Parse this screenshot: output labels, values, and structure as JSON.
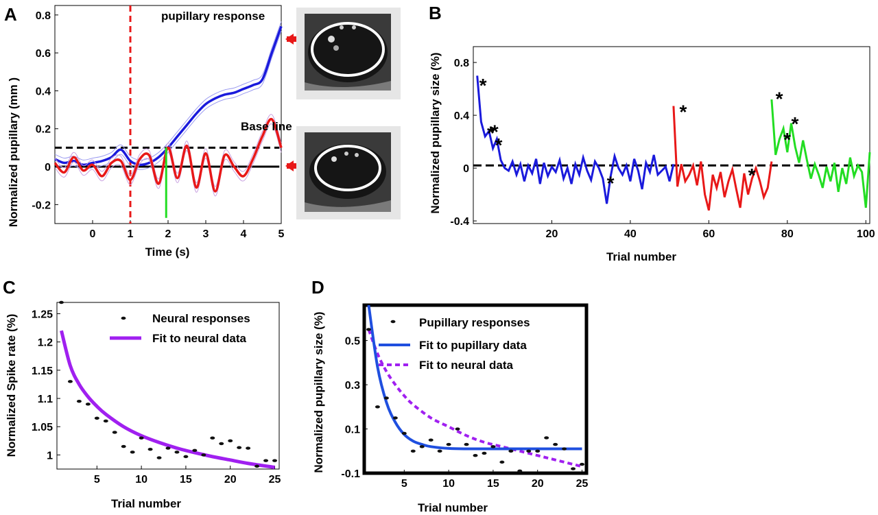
{
  "colors": {
    "blue": "#1a1adc",
    "red": "#e81818",
    "green": "#22dd22",
    "purple": "#a020f0",
    "fit_blue": "#1f4fdf",
    "black": "#000000",
    "shade_blue": "#9a9af0",
    "shade_red": "#c8a0e0"
  },
  "panels": {
    "A": {
      "letter": "A",
      "xlabel": "Time (s)",
      "ylabel": "Normalized pupillary (mm )",
      "annotations": {
        "response": "pupillary response",
        "baseline": "Base line"
      },
      "eye_images": [
        "eye-image-response",
        "eye-image-baseline"
      ]
    },
    "B": {
      "letter": "B",
      "xlabel": "Trial number",
      "ylabel": "Normalized pupillary size (%)",
      "asterisk": "*"
    },
    "C": {
      "letter": "C",
      "xlabel": "Trial number",
      "ylabel": "Normalized Spike rate (%)",
      "legend": [
        "Neural responses",
        "Fit to neural data"
      ]
    },
    "D": {
      "letter": "D",
      "xlabel": "Trial number",
      "ylabel": "Normalized pupillary size (%)",
      "legend": [
        "Pupillary responses",
        "Fit to pupillary data",
        "Fit to neural data"
      ]
    }
  },
  "chart_data": [
    {
      "id": "A",
      "type": "line",
      "x_range": [
        -1,
        5
      ],
      "ylim": [
        -0.3,
        0.85
      ],
      "x_ticks": [
        0,
        1,
        2,
        3,
        4,
        5
      ],
      "y_ticks": [
        -0.2,
        0,
        0.2,
        0.4,
        0.6,
        0.8
      ],
      "x_tick_labels": [
        "0",
        "1",
        "2",
        "3",
        "4",
        "5"
      ],
      "y_tick_labels": [
        "-0.2",
        "0",
        "0.2",
        "0.4",
        "0.6",
        "0.8"
      ],
      "stimulus_line_x": 1,
      "threshold_y": 0.1,
      "baseline_y": 0,
      "green_marker": {
        "x": 1.95,
        "y_from": -0.27,
        "y_to": 0.1
      },
      "series": [
        {
          "color": "blue",
          "x": [
            -1,
            -0.75,
            -0.5,
            -0.25,
            0,
            0.25,
            0.5,
            0.75,
            1,
            1.25,
            1.5,
            1.75,
            2,
            2.25,
            2.5,
            2.75,
            3,
            3.25,
            3.5,
            3.75,
            4,
            4.25,
            4.5,
            4.75,
            5
          ],
          "y": [
            0.04,
            0.02,
            0.03,
            0.01,
            0.02,
            0.03,
            0.05,
            0.09,
            0.03,
            0.01,
            0.02,
            0.05,
            0.1,
            0.16,
            0.22,
            0.28,
            0.33,
            0.36,
            0.38,
            0.39,
            0.41,
            0.43,
            0.46,
            0.6,
            0.74
          ]
        },
        {
          "color": "red",
          "x": [
            -1,
            -0.75,
            -0.5,
            -0.25,
            0,
            0.25,
            0.5,
            0.75,
            1,
            1.25,
            1.5,
            1.75,
            2,
            2.25,
            2.5,
            2.75,
            3,
            3.25,
            3.5,
            3.75,
            4,
            4.25,
            4.5,
            4.75,
            5
          ],
          "y": [
            0.02,
            -0.03,
            0.05,
            -0.02,
            0.01,
            -0.05,
            0.02,
            0.03,
            -0.07,
            0.04,
            0.06,
            -0.09,
            0.1,
            -0.06,
            0.11,
            -0.11,
            0.07,
            -0.13,
            0.06,
            0.0,
            -0.05,
            0.04,
            0.16,
            0.25,
            0.1
          ]
        }
      ]
    },
    {
      "id": "B",
      "type": "line",
      "x_range": [
        0,
        101
      ],
      "ylim": [
        -0.42,
        0.92
      ],
      "x_ticks": [
        20,
        40,
        60,
        80,
        100
      ],
      "y_ticks": [
        -0.4,
        0,
        0.4,
        0.8
      ],
      "x_tick_labels": [
        "20",
        "40",
        "60",
        "80",
        "100"
      ],
      "y_tick_labels": [
        "-0.4",
        "0",
        "0.4",
        "0.8"
      ],
      "baseline_y": 0.02,
      "series": [
        {
          "color": "blue",
          "x_start": 1,
          "y": [
            0.7,
            0.35,
            0.24,
            0.28,
            0.15,
            0.22,
            0.06,
            0.0,
            -0.02,
            0.05,
            -0.05,
            0.03,
            -0.1,
            0.02,
            -0.04,
            0.07,
            -0.12,
            0.04,
            -0.06,
            0.01,
            -0.03,
            0.06,
            -0.08,
            0.0,
            -0.12,
            0.03,
            -0.05,
            0.08,
            -0.02,
            -0.09,
            0.05,
            0.0,
            -0.08,
            -0.27,
            -0.06,
            0.09,
            0.0,
            -0.05,
            0.02,
            -0.1,
            0.07,
            -0.02,
            -0.16,
            0.04,
            -0.03,
            0.1,
            -0.05,
            -0.02,
            0.01,
            -0.1,
            0.03
          ]
        },
        {
          "color": "red",
          "x_start": 51,
          "y": [
            0.47,
            -0.14,
            0.03,
            -0.1,
            -0.05,
            0.02,
            -0.13,
            0.05,
            -0.2,
            -0.32,
            -0.05,
            -0.15,
            -0.03,
            -0.22,
            -0.1,
            -0.01,
            -0.16,
            -0.3,
            -0.04,
            -0.2,
            -0.08,
            0.0,
            -0.1,
            -0.22,
            -0.15,
            0.05
          ]
        },
        {
          "color": "green",
          "x_start": 76,
          "y": [
            0.52,
            0.1,
            0.22,
            0.3,
            0.12,
            0.34,
            0.16,
            0.04,
            0.21,
            0.06,
            -0.08,
            0.03,
            -0.05,
            -0.15,
            0.01,
            -0.1,
            0.04,
            -0.18,
            0.0,
            -0.12,
            0.08,
            -0.06,
            0.02,
            -0.03,
            -0.3,
            0.12
          ]
        }
      ],
      "asterisks": [
        {
          "x": 1.5,
          "y": 0.68
        },
        {
          "x": 3.5,
          "y": 0.32
        },
        {
          "x": 4.5,
          "y": 0.33
        },
        {
          "x": 5.5,
          "y": 0.23
        },
        {
          "x": 34,
          "y": -0.06
        },
        {
          "x": 52.5,
          "y": 0.48
        },
        {
          "x": 70,
          "y": 0.0
        },
        {
          "x": 77,
          "y": 0.58
        },
        {
          "x": 79,
          "y": 0.27
        },
        {
          "x": 81,
          "y": 0.39
        }
      ]
    },
    {
      "id": "C",
      "type": "scatter",
      "x_range": [
        0.5,
        25.5
      ],
      "ylim": [
        0.975,
        1.27
      ],
      "x_ticks": [
        5,
        10,
        15,
        20,
        25
      ],
      "y_ticks": [
        1,
        1.05,
        1.1,
        1.15,
        1.2,
        1.25
      ],
      "x_tick_labels": [
        "5",
        "10",
        "15",
        "20",
        "25"
      ],
      "y_tick_labels": [
        "1",
        "1.05",
        "1.1",
        "1.15",
        "1.2",
        "1.25"
      ],
      "series": [
        {
          "name": "Neural responses",
          "color": "black",
          "x": [
            1,
            2,
            3,
            4,
            5,
            6,
            7,
            8,
            9,
            10,
            11,
            12,
            13,
            14,
            15,
            16,
            17,
            18,
            19,
            20,
            21,
            22,
            23,
            24,
            25
          ],
          "y": [
            1.27,
            1.13,
            1.095,
            1.09,
            1.065,
            1.06,
            1.04,
            1.015,
            1.005,
            1.03,
            1.01,
            0.995,
            1.012,
            1.005,
            0.997,
            1.008,
            1.0,
            1.03,
            1.02,
            1.025,
            1.013,
            1.012,
            0.98,
            0.99,
            0.99
          ]
        },
        {
          "name": "Fit to neural data",
          "color": "purple",
          "type": "fit",
          "x": [
            1,
            2,
            3,
            4,
            5,
            6,
            8,
            10,
            12,
            14,
            16,
            18,
            20,
            22,
            25
          ],
          "y": [
            1.22,
            1.158,
            1.125,
            1.103,
            1.086,
            1.072,
            1.05,
            1.034,
            1.022,
            1.012,
            1.004,
            0.997,
            0.991,
            0.985,
            0.978
          ]
        }
      ]
    },
    {
      "id": "D",
      "type": "scatter",
      "x_range": [
        0.5,
        25.5
      ],
      "ylim": [
        -0.1,
        0.66
      ],
      "x_ticks": [
        5,
        10,
        15,
        20,
        25
      ],
      "y_ticks": [
        -0.1,
        0.1,
        0.3,
        0.5
      ],
      "x_tick_labels": [
        "5",
        "10",
        "15",
        "20",
        "25"
      ],
      "y_tick_labels": [
        "-0.1",
        "0.1",
        "0.3",
        "0.5"
      ],
      "series": [
        {
          "name": "Pupillary responses",
          "color": "black",
          "x": [
            1,
            2,
            3,
            4,
            5,
            6,
            7,
            8,
            9,
            10,
            11,
            12,
            13,
            14,
            15,
            16,
            17,
            18,
            19,
            20,
            21,
            22,
            23,
            24,
            25
          ],
          "y": [
            0.55,
            0.2,
            0.24,
            0.15,
            0.08,
            0.0,
            0.02,
            0.05,
            0.0,
            0.03,
            0.1,
            0.03,
            -0.02,
            -0.01,
            0.02,
            -0.05,
            0.0,
            -0.09,
            0.0,
            0.0,
            0.06,
            0.03,
            0.01,
            -0.08,
            -0.06
          ]
        },
        {
          "name": "Fit to pupillary data",
          "color": "fit_blue",
          "type": "fit",
          "x": [
            1,
            2,
            3,
            4,
            5,
            6,
            7,
            8,
            10,
            12,
            15,
            20,
            25
          ],
          "y": [
            0.66,
            0.38,
            0.22,
            0.13,
            0.075,
            0.045,
            0.03,
            0.02,
            0.012,
            0.01,
            0.01,
            0.01,
            0.01
          ]
        },
        {
          "name": "Fit to neural data",
          "color": "purple",
          "type": "fit",
          "dashed": true,
          "x": [
            1,
            2,
            3,
            4,
            5,
            6,
            8,
            10,
            12,
            14,
            16,
            18,
            20,
            22,
            25
          ],
          "y": [
            0.55,
            0.44,
            0.36,
            0.3,
            0.25,
            0.21,
            0.15,
            0.11,
            0.07,
            0.04,
            0.02,
            0.0,
            -0.02,
            -0.04,
            -0.07
          ]
        }
      ]
    }
  ]
}
